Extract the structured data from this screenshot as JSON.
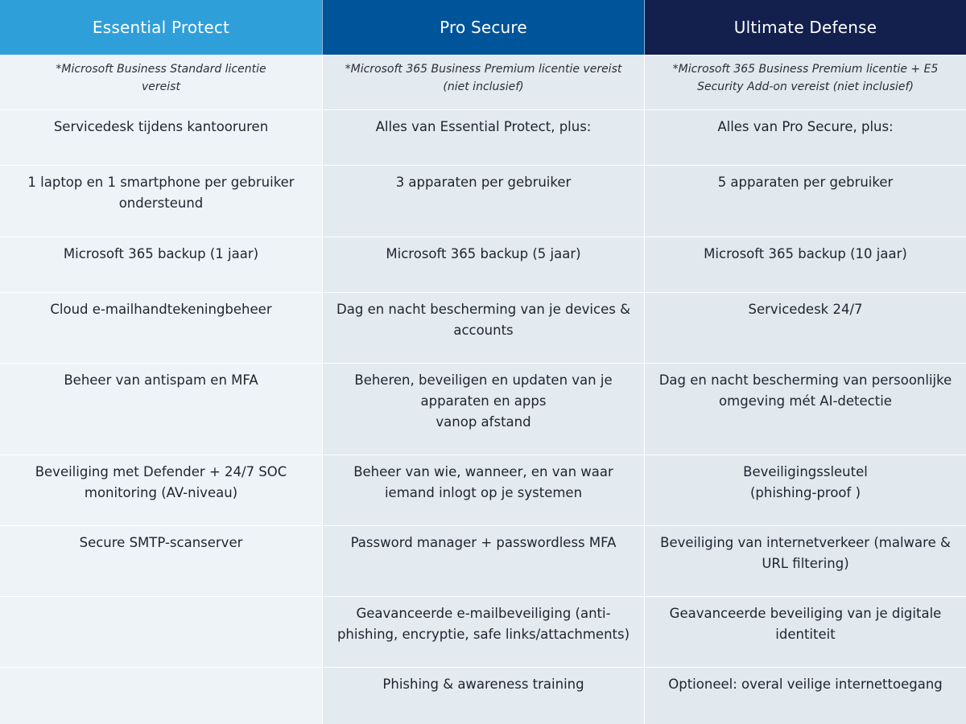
{
  "columns": [
    {
      "title": "Essential Protect",
      "note": "*Microsoft Business Standard licentie\nvereist",
      "color": "#2f9fd9",
      "items": [
        "Servicedesk tijdens kantooruren",
        "1 laptop en 1 smartphone per gebruiker\nondersteund",
        "Microsoft 365 backup (1 jaar)",
        "Cloud e-mailhandtekeningbeheer",
        "Beheer van antispam en MFA",
        "Beveiliging met Defender + 24/7 SOC\nmonitoring (AV-niveau)",
        "Secure SMTP-scanserver",
        "",
        ""
      ]
    },
    {
      "title": "Pro Secure",
      "note": "*Microsoft 365 Business Premium licentie vereist\n(niet inclusief)",
      "color": "#00549a",
      "items": [
        "Alles van Essential Protect, plus:",
        "3 apparaten per gebruiker",
        "Microsoft 365 backup (5 jaar)",
        "Dag en nacht bescherming van je devices &\naccounts",
        "Beheren, beveiligen en updaten van je\napparaten en apps\nvanop afstand",
        "Beheer van wie, wanneer, en van waar\niemand inlogt op je systemen",
        "Password manager + passwordless MFA",
        "Geavanceerde e-mailbeveiliging (anti-\nphishing, encryptie, safe links/attachments)",
        "Phishing & awareness training"
      ]
    },
    {
      "title": "Ultimate Defense",
      "note": "*Microsoft 365 Business Premium licentie + E5\nSecurity Add-on vereist (niet inclusief)",
      "color": "#13204d",
      "items": [
        "Alles van Pro Secure, plus:",
        "5 apparaten per gebruiker",
        "Microsoft 365 backup (10 jaar)",
        "Servicedesk 24/7",
        "Dag en nacht bescherming van persoonlijke\nomgeving mét AI-detectie",
        "Beveiligingssleutel\n(phishing-proof )",
        "Beveiliging van internetverkeer (malware &\nURL filtering)",
        "Geavanceerde beveiliging van je digitale\nidentiteit",
        "Optioneel: overal veilige internettoegang"
      ]
    }
  ]
}
